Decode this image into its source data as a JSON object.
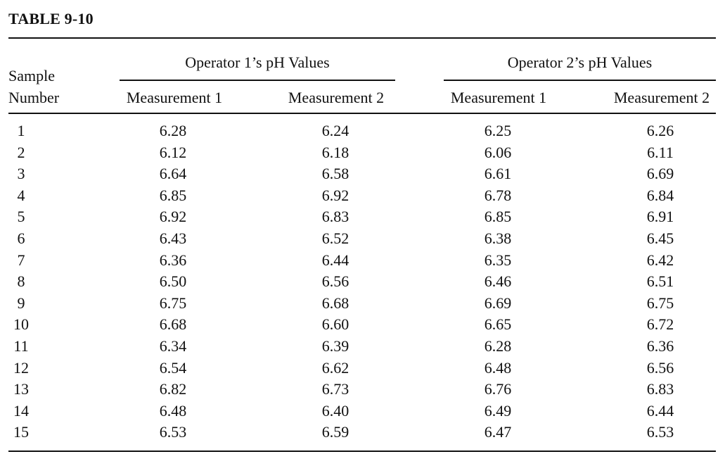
{
  "table": {
    "title": "TABLE 9-10",
    "group_headers": [
      "Operator 1’s pH Values",
      "Operator 2’s pH Values"
    ],
    "sample_header": [
      "Sample",
      "Number"
    ],
    "column_headers": [
      "Measurement 1",
      "Measurement 2",
      "Measurement 1",
      "Measurement 2"
    ],
    "rows": [
      {
        "sample": "1",
        "values": [
          "6.28",
          "6.24",
          "6.25",
          "6.26"
        ]
      },
      {
        "sample": "2",
        "values": [
          "6.12",
          "6.18",
          "6.06",
          "6.11"
        ]
      },
      {
        "sample": "3",
        "values": [
          "6.64",
          "6.58",
          "6.61",
          "6.69"
        ]
      },
      {
        "sample": "4",
        "values": [
          "6.85",
          "6.92",
          "6.78",
          "6.84"
        ]
      },
      {
        "sample": "5",
        "values": [
          "6.92",
          "6.83",
          "6.85",
          "6.91"
        ]
      },
      {
        "sample": "6",
        "values": [
          "6.43",
          "6.52",
          "6.38",
          "6.45"
        ]
      },
      {
        "sample": "7",
        "values": [
          "6.36",
          "6.44",
          "6.35",
          "6.42"
        ]
      },
      {
        "sample": "8",
        "values": [
          "6.50",
          "6.56",
          "6.46",
          "6.51"
        ]
      },
      {
        "sample": "9",
        "values": [
          "6.75",
          "6.68",
          "6.69",
          "6.75"
        ]
      },
      {
        "sample": "10",
        "values": [
          "6.68",
          "6.60",
          "6.65",
          "6.72"
        ]
      },
      {
        "sample": "11",
        "values": [
          "6.34",
          "6.39",
          "6.28",
          "6.36"
        ]
      },
      {
        "sample": "12",
        "values": [
          "6.54",
          "6.62",
          "6.48",
          "6.56"
        ]
      },
      {
        "sample": "13",
        "values": [
          "6.82",
          "6.73",
          "6.76",
          "6.83"
        ]
      },
      {
        "sample": "14",
        "values": [
          "6.48",
          "6.40",
          "6.49",
          "6.44"
        ]
      },
      {
        "sample": "15",
        "values": [
          "6.53",
          "6.59",
          "6.47",
          "6.53"
        ]
      }
    ]
  }
}
